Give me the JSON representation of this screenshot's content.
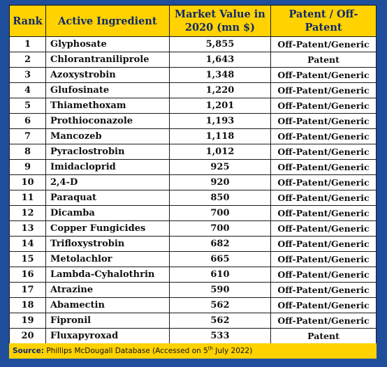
{
  "table": {
    "headers": {
      "rank": "Rank",
      "ingredient": "Active Ingredient",
      "value_line1": "Market Value in",
      "value_line2": "2020 (mn $)",
      "patent": "Patent / Off-Patent"
    },
    "rows": [
      {
        "rank": "1",
        "ingredient": "Glyphosate",
        "value": "5,855",
        "patent": "Off-Patent/Generic"
      },
      {
        "rank": "2",
        "ingredient": "Chlorantraniliprole",
        "value": "1,643",
        "patent": "Patent"
      },
      {
        "rank": "3",
        "ingredient": "Azoxystrobin",
        "value": "1,348",
        "patent": "Off-Patent/Generic"
      },
      {
        "rank": "4",
        "ingredient": "Glufosinate",
        "value": "1,220",
        "patent": "Off-Patent/Generic"
      },
      {
        "rank": "5",
        "ingredient": "Thiamethoxam",
        "value": "1,201",
        "patent": "Off-Patent/Generic"
      },
      {
        "rank": "6",
        "ingredient": "Prothioconazole",
        "value": "1,193",
        "patent": "Off-Patent/Generic"
      },
      {
        "rank": "7",
        "ingredient": "Mancozeb",
        "value": "1,118",
        "patent": "Off-Patent/Generic"
      },
      {
        "rank": "8",
        "ingredient": "Pyraclostrobin",
        "value": "1,012",
        "patent": "Off-Patent/Generic"
      },
      {
        "rank": "9",
        "ingredient": "Imidacloprid",
        "value": "925",
        "patent": "Off-Patent/Generic"
      },
      {
        "rank": "10",
        "ingredient": "2,4-D",
        "value": "920",
        "patent": "Off-Patent/Generic"
      },
      {
        "rank": "11",
        "ingredient": "Paraquat",
        "value": "850",
        "patent": "Off-Patent/Generic"
      },
      {
        "rank": "12",
        "ingredient": "Dicamba",
        "value": "700",
        "patent": "Off-Patent/Generic"
      },
      {
        "rank": "13",
        "ingredient": "Copper Fungicides",
        "value": "700",
        "patent": "Off-Patent/Generic"
      },
      {
        "rank": "14",
        "ingredient": "Trifloxystrobin",
        "value": "682",
        "patent": "Off-Patent/Generic"
      },
      {
        "rank": "15",
        "ingredient": "Metolachlor",
        "value": "665",
        "patent": "Off-Patent/Generic"
      },
      {
        "rank": "16",
        "ingredient": "Lambda-Cyhalothrin",
        "value": "610",
        "patent": "Off-Patent/Generic"
      },
      {
        "rank": "17",
        "ingredient": "Atrazine",
        "value": "590",
        "patent": "Off-Patent/Generic"
      },
      {
        "rank": "18",
        "ingredient": "Abamectin",
        "value": "562",
        "patent": "Off-Patent/Generic"
      },
      {
        "rank": "19",
        "ingredient": "Fipronil",
        "value": "562",
        "patent": "Off-Patent/Generic"
      },
      {
        "rank": "20",
        "ingredient": "Fluxapyroxad",
        "value": "533",
        "patent": "Patent"
      }
    ]
  },
  "source": {
    "label": "Source:",
    "text_before": "Phillips McDougall Database (Accessed on 5",
    "superscript": "th",
    "text_after": " July 2022)"
  },
  "colors": {
    "frame": "#1f4e9c",
    "header_fill": "#ffd200",
    "header_text": "#102a6b"
  }
}
